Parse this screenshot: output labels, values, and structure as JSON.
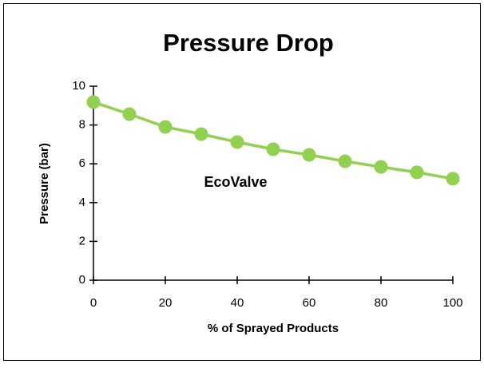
{
  "chart_data": {
    "type": "line",
    "title": "Pressure Drop",
    "x_label": "% of Sprayed Products",
    "y_label": "Pressure (bar)",
    "annotation": "EcoValve",
    "x": [
      0,
      10,
      20,
      30,
      40,
      50,
      60,
      70,
      80,
      90,
      100
    ],
    "series": [
      {
        "name": "EcoValve",
        "color": "#92d050",
        "values": [
          9.18,
          8.56,
          7.9,
          7.53,
          7.12,
          6.75,
          6.46,
          6.13,
          5.84,
          5.56,
          5.23
        ]
      }
    ],
    "xlim": [
      0,
      100
    ],
    "xticks": [
      0,
      20,
      40,
      60,
      80,
      100
    ],
    "ylim": [
      0,
      10
    ],
    "yticks": [
      0,
      2,
      4,
      6,
      8,
      10
    ],
    "grid": false,
    "legend": false
  }
}
